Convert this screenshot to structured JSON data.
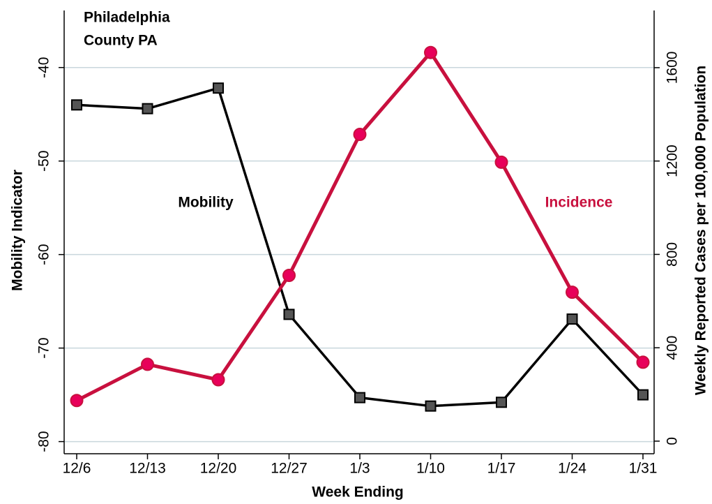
{
  "chart_data": {
    "type": "line",
    "title": [
      "Philadelphia",
      "County PA"
    ],
    "x_label": "Week Ending",
    "y_label": "Mobility Indicator",
    "y2_label": "Weekly Reported Cases per 100,000 Population",
    "categories": [
      "12/6",
      "12/13",
      "12/20",
      "12/27",
      "1/3",
      "1/10",
      "1/17",
      "1/24",
      "1/31"
    ],
    "series": [
      {
        "name": "Mobility",
        "color": "#000000",
        "marker_color": "#555555",
        "marker": "square",
        "values": [
          -44.0,
          -44.4,
          -42.2,
          -66.4,
          -75.3,
          -76.2,
          -75.8,
          -66.9,
          -75.0
        ]
      },
      {
        "name": "Incidence",
        "color": "#c8103e",
        "marker_color": "#e8005a",
        "marker": "circle",
        "axis": "y2",
        "values": [
          174,
          329,
          263,
          710,
          1314,
          1665,
          1195,
          638,
          338
        ]
      }
    ],
    "ylim": [
      -81.3,
      -33.9
    ],
    "yticks": [
      -80,
      -70,
      -60,
      -50,
      -40
    ],
    "y2lim": [
      -54,
      1845
    ],
    "y2ticks": [
      0,
      400,
      800,
      1200,
      1600
    ],
    "grid": true
  }
}
